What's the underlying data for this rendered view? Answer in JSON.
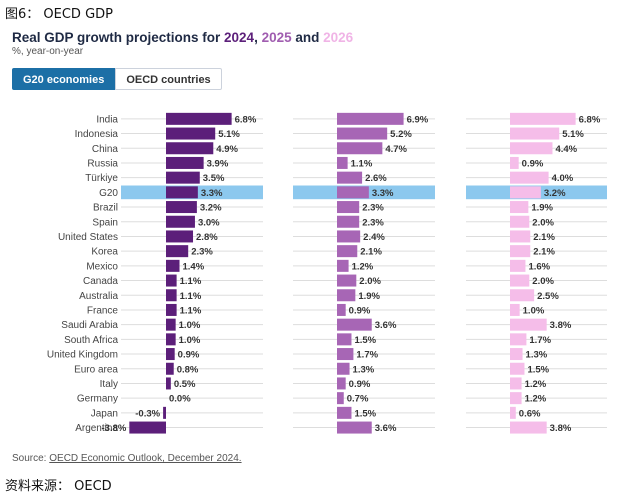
{
  "caption": "图6： OECD GDP",
  "title_parts": [
    {
      "text": "Real GDP growth projections for ",
      "color": "#1f2a44"
    },
    {
      "text": "2024",
      "color": "#5c1f7a"
    },
    {
      "text": ", ",
      "color": "#1f2a44"
    },
    {
      "text": "2025",
      "color": "#a05db0"
    },
    {
      "text": " and ",
      "color": "#1f2a44"
    },
    {
      "text": "2026",
      "color": "#f0b4e6"
    }
  ],
  "subtitle": "%, year-on-year",
  "tabs": {
    "g20": "G20 economies",
    "oecd": "OECD countries"
  },
  "source_label": "Source: ",
  "source_link": "OECD Economic Outlook, December 2024.",
  "footer_caption": "资料来源： OECD",
  "colors": {
    "y2024": "#5c1f7a",
    "y2025": "#a766b5",
    "y2026": "#f5bde9",
    "highlight": "#8cc8ee",
    "grid": "#dddddd"
  },
  "chart_data": {
    "type": "bar",
    "orientation": "horizontal",
    "title": "Real GDP growth projections for 2024, 2025 and 2026",
    "subtitle": "%, year-on-year",
    "highlight_category": "G20",
    "categories": [
      "India",
      "Indonesia",
      "China",
      "Russia",
      "Türkiye",
      "G20",
      "Brazil",
      "Spain",
      "United States",
      "Korea",
      "Mexico",
      "Canada",
      "Australia",
      "France",
      "Saudi Arabia",
      "South Africa",
      "United Kingdom",
      "Euro area",
      "Italy",
      "Germany",
      "Japan",
      "Argentina"
    ],
    "series": [
      {
        "name": "2024",
        "values": [
          6.8,
          5.1,
          4.9,
          3.9,
          3.5,
          3.3,
          3.2,
          3.0,
          2.8,
          2.3,
          1.4,
          1.1,
          1.1,
          1.1,
          1.0,
          1.0,
          0.9,
          0.8,
          0.5,
          0.0,
          -0.3,
          -3.8
        ]
      },
      {
        "name": "2025",
        "values": [
          6.9,
          5.2,
          4.7,
          1.1,
          2.6,
          3.3,
          2.3,
          2.3,
          2.4,
          2.1,
          1.2,
          2.0,
          1.9,
          0.9,
          3.6,
          1.5,
          1.7,
          1.3,
          0.9,
          0.7,
          1.5,
          3.6
        ]
      },
      {
        "name": "2026",
        "values": [
          6.8,
          5.1,
          4.4,
          0.9,
          4.0,
          3.2,
          1.9,
          2.0,
          2.1,
          2.1,
          1.6,
          2.0,
          2.5,
          1.0,
          3.8,
          1.7,
          1.3,
          1.5,
          1.2,
          1.2,
          0.6,
          3.8
        ]
      }
    ]
  }
}
